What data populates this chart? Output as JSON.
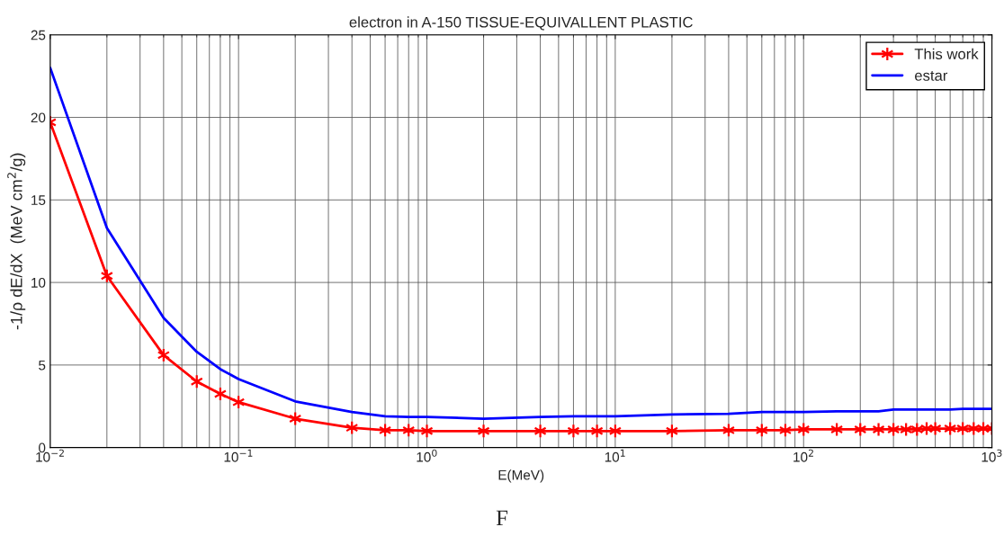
{
  "chart_data": {
    "type": "line",
    "title": "electron in A-150 TISSUE-EQUIVALLENT PLASTIC",
    "xlabel": "E(MeV)",
    "ylabel": "-1/ρ dE/dX  (MeV cm$^{2}$/g)",
    "log": "x",
    "xlim": [
      0.01,
      1000
    ],
    "xticks": [
      {
        "value": 0.01,
        "label": "10$^{−2}$"
      },
      {
        "value": 0.1,
        "label": "10$^{−1}$"
      },
      {
        "value": 1,
        "label": "10$^{0}$"
      },
      {
        "value": 10,
        "label": "10$^{1}$"
      },
      {
        "value": 100,
        "label": "10$^{2}$"
      },
      {
        "value": 1000,
        "label": "10$^{3}$"
      }
    ],
    "ylim": [
      0,
      25
    ],
    "yticks": [
      0,
      5,
      10,
      15,
      20,
      25
    ],
    "grid": true,
    "legend": "top right",
    "annotations": [
      "F"
    ],
    "series": [
      {
        "name": "This work",
        "color": "#ff0000",
        "marker": "cross",
        "x": [
          0.01,
          0.02,
          0.04,
          0.06,
          0.08,
          0.1,
          0.2,
          0.4,
          0.6,
          0.8,
          1,
          2,
          4,
          6,
          8,
          10,
          20,
          40,
          60,
          80,
          100,
          150,
          200,
          250,
          300,
          350,
          400,
          450,
          500,
          600,
          700,
          800,
          900,
          1000
        ],
        "values": [
          19.7,
          10.4,
          5.6,
          4.0,
          3.25,
          2.75,
          1.75,
          1.2,
          1.05,
          1.05,
          1.0,
          1.0,
          1.0,
          1.0,
          1.0,
          1.0,
          1.0,
          1.05,
          1.05,
          1.05,
          1.1,
          1.1,
          1.1,
          1.1,
          1.1,
          1.1,
          1.1,
          1.15,
          1.15,
          1.15,
          1.15,
          1.15,
          1.15,
          1.15
        ]
      },
      {
        "name": "estar",
        "color": "#0000ff",
        "x": [
          0.01,
          0.02,
          0.04,
          0.06,
          0.08,
          0.1,
          0.2,
          0.4,
          0.6,
          0.8,
          1,
          2,
          4,
          6,
          10,
          20,
          40,
          60,
          100,
          150,
          250,
          300,
          500,
          600,
          700,
          1000
        ],
        "values": [
          23.0,
          13.3,
          7.85,
          5.8,
          4.75,
          4.15,
          2.8,
          2.15,
          1.9,
          1.85,
          1.85,
          1.75,
          1.85,
          1.9,
          1.9,
          2.0,
          2.05,
          2.15,
          2.15,
          2.2,
          2.2,
          2.3,
          2.3,
          2.3,
          2.35,
          2.35
        ]
      }
    ]
  }
}
